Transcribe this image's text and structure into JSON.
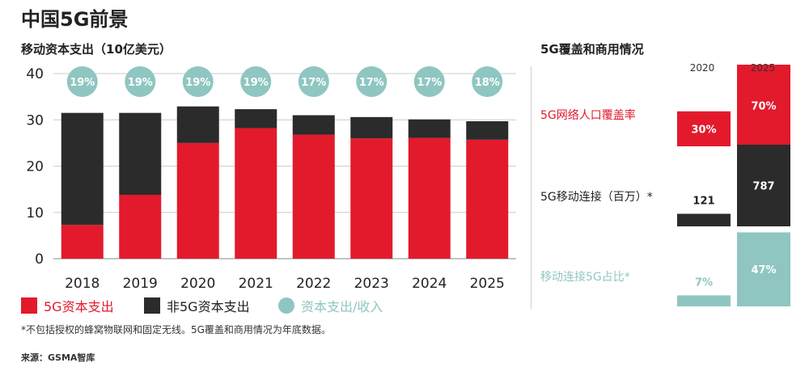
{
  "title": "中国5G前景",
  "left_chart_subtitle": "移动资本支出（10亿美元）",
  "right_panel_subtitle": "5G覆盖和商用情况",
  "colors": {
    "red": "#e21a2c",
    "dark": "#2b2b2b",
    "teal": "#8fc6c1"
  },
  "legend": {
    "item1": "5G资本支出",
    "item2": "非5G资本支出",
    "item3": "资本支出/收入"
  },
  "footnote": "*不包括授权的蜂窝物联网和固定无线。5G覆盖和商用情况为年底数据。",
  "source": "来源：GSMA智库",
  "chart_data": [
    {
      "type": "bar",
      "stacked": true,
      "categories": [
        "2018",
        "2019",
        "2020",
        "2021",
        "2022",
        "2023",
        "2024",
        "2025"
      ],
      "series": [
        {
          "name": "5G资本支出",
          "color": "#e21a2c",
          "values": [
            7.3,
            13.8,
            25.0,
            28.2,
            26.8,
            26.0,
            26.1,
            25.7
          ]
        },
        {
          "name": "非5G资本支出",
          "color": "#2b2b2b",
          "values": [
            24.2,
            17.7,
            7.9,
            4.1,
            4.2,
            4.6,
            4.0,
            4.0
          ]
        }
      ],
      "capex_revenue_labels": [
        "19%",
        "19%",
        "19%",
        "19%",
        "17%",
        "17%",
        "17%",
        "18%"
      ],
      "yticks": [
        0,
        10,
        20,
        30,
        40
      ],
      "ylim": [
        0,
        40
      ],
      "grid": true
    },
    {
      "type": "bar",
      "years": [
        "2020",
        "2025"
      ],
      "rows": [
        {
          "label": "5G网络人口覆盖率",
          "color": "#e21a2c",
          "values": [
            30,
            70
          ],
          "value_labels": [
            "30%",
            "70%"
          ]
        },
        {
          "label": "5G移动连接（百万）*",
          "color": "#2b2b2b",
          "values": [
            121,
            787
          ],
          "value_labels": [
            "121",
            "787"
          ]
        },
        {
          "label": "移动连接5G占比*",
          "color": "#8fc6c1",
          "values": [
            7,
            47
          ],
          "value_labels": [
            "7%",
            "47%"
          ]
        }
      ]
    }
  ]
}
